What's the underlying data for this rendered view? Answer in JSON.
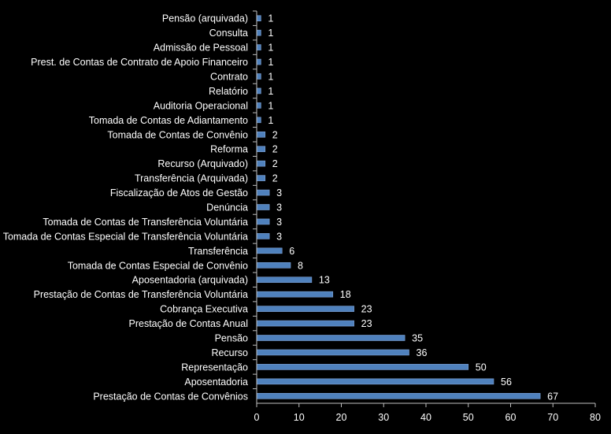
{
  "chart_data": {
    "type": "bar",
    "orientation": "horizontal",
    "categories": [
      "Pensão (arquivada)",
      "Consulta",
      "Admissão de Pessoal",
      "Prest. de Contas de Contrato de Apoio Financeiro",
      "Contrato",
      "Relatório",
      "Auditoria Operacional",
      "Tomada de Contas de Adiantamento",
      "Tomada de Contas de Convênio",
      "Reforma",
      "Recurso (Arquivado)",
      "Transferência (Arquivada)",
      "Fiscalização de Atos de Gestão",
      "Denúncia",
      "Tomada de Contas de Transferência Voluntária",
      "Tomada de Contas Especial de Transferência Voluntária",
      "Transferência",
      "Tomada de Contas Especial de Convênio",
      "Aposentadoria (arquivada)",
      "Prestação de Contas de Transferência Voluntária",
      "Cobrança Executiva",
      "Prestação de Contas Anual",
      "Pensão",
      "Recurso",
      "Representação",
      "Aposentadoria",
      "Prestação de Contas de Convênios"
    ],
    "values": [
      1,
      1,
      1,
      1,
      1,
      1,
      1,
      1,
      2,
      2,
      2,
      2,
      3,
      3,
      3,
      3,
      6,
      8,
      13,
      18,
      23,
      23,
      35,
      36,
      50,
      56,
      67
    ],
    "xlim": [
      0,
      80
    ],
    "xticks": [
      0,
      10,
      20,
      30,
      40,
      50,
      60,
      70,
      80
    ],
    "data_labels": true,
    "legend": "none",
    "grid": false,
    "colors": {
      "background": "#000000",
      "bar_fill": "#4f81bd",
      "bar_stroke": "#7fa3d6",
      "axis": "#bfbfbf",
      "text": "#ffffff"
    }
  }
}
